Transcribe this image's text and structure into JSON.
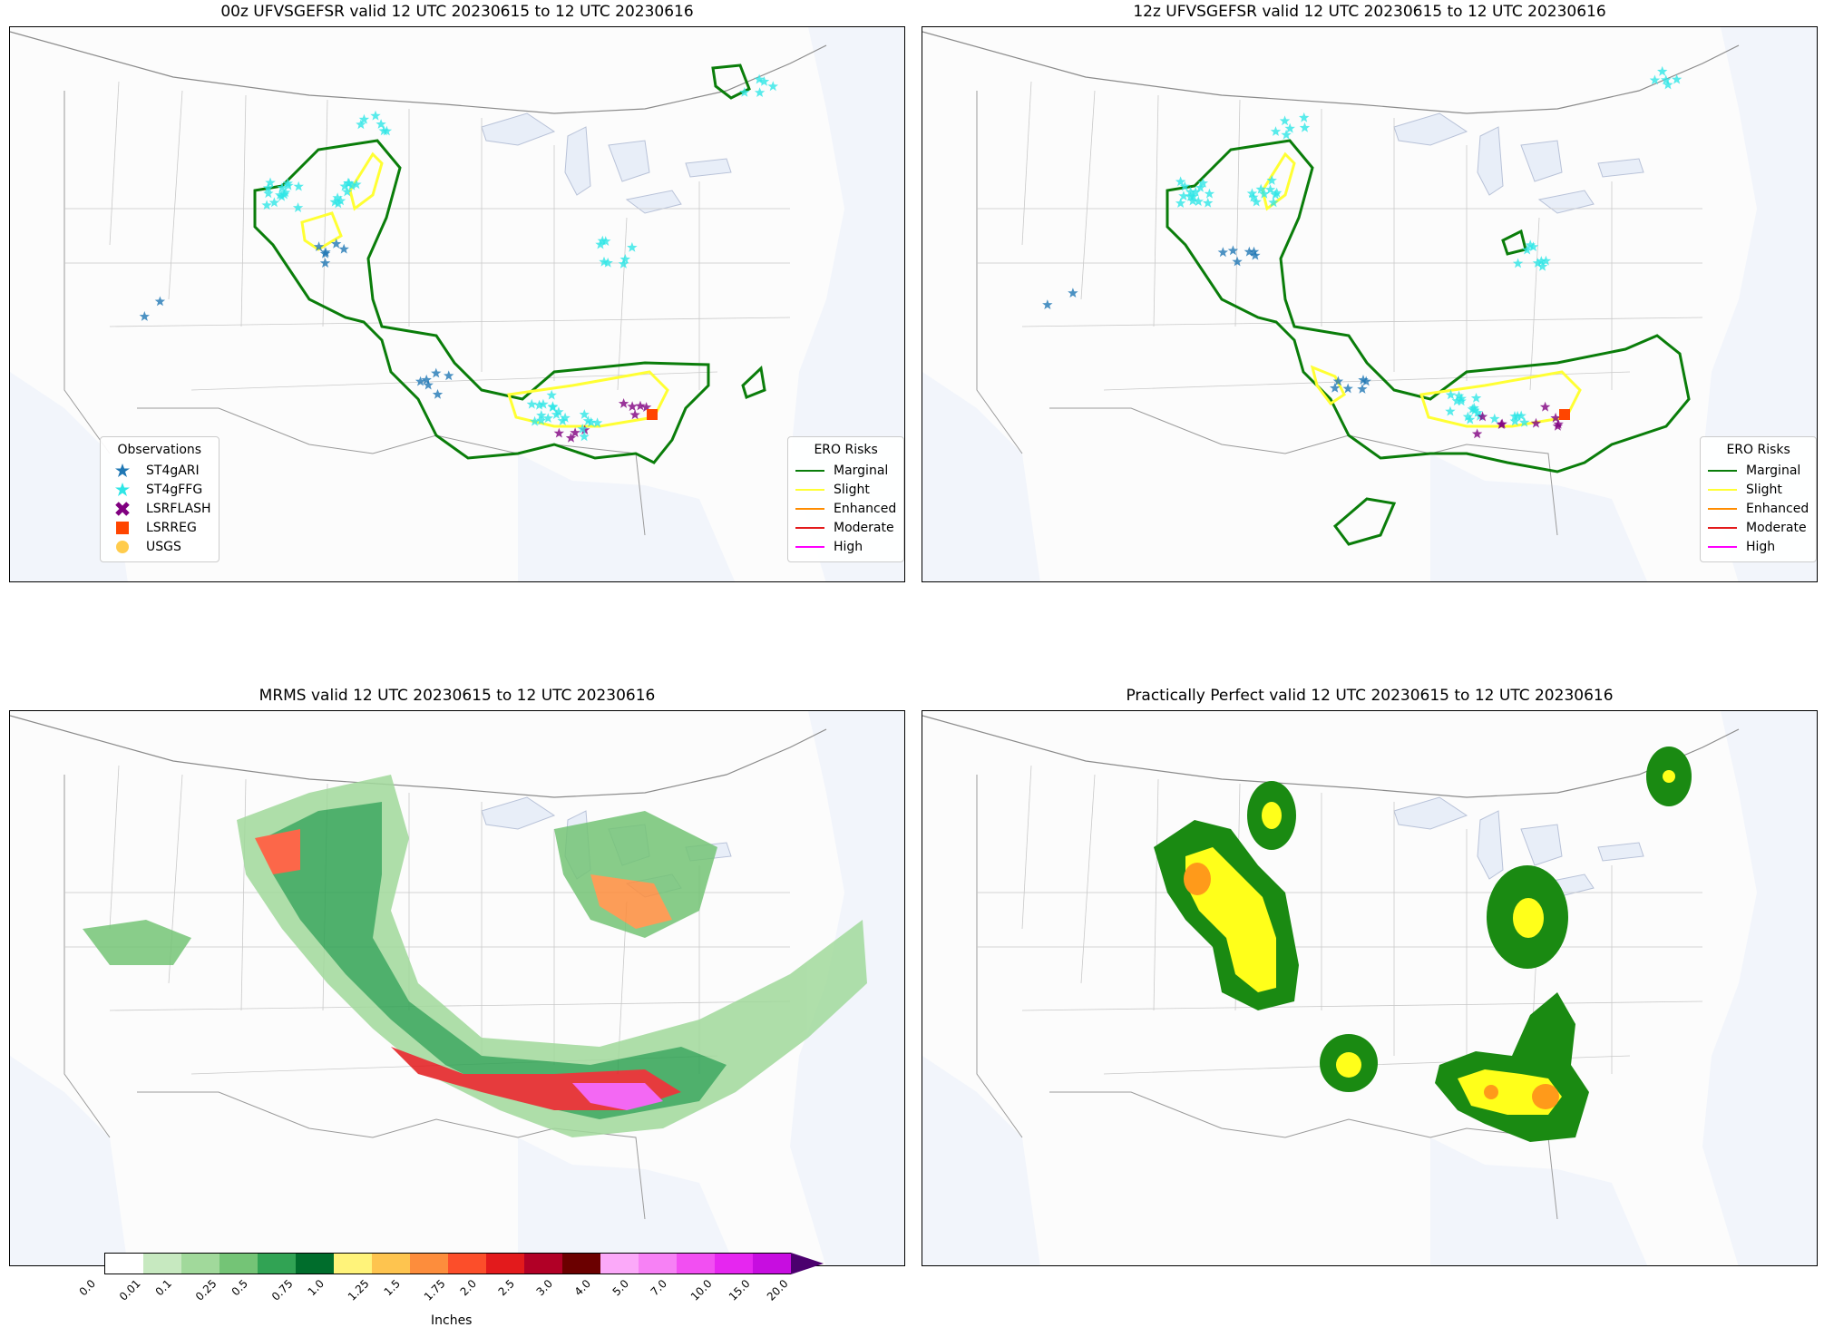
{
  "panels": {
    "tl": {
      "title": "00z UFVSGEFSR valid 12 UTC 20230615 to 12 UTC 20230616"
    },
    "tr": {
      "title": "12z UFVSGEFSR valid 12 UTC 20230615 to 12 UTC 20230616"
    },
    "bl": {
      "title": "MRMS valid 12 UTC 20230615 to 12 UTC 20230616"
    },
    "br": {
      "title": "Practically Perfect valid 12 UTC 20230615 to 12 UTC 20230616"
    }
  },
  "observations_legend": {
    "title": "Observations",
    "items": [
      {
        "label": "ST4gARI",
        "color": "#1f77b4",
        "icon": "star-icon"
      },
      {
        "label": "ST4gFFG",
        "color": "#2ee6e6",
        "icon": "star-icon"
      },
      {
        "label": "LSRFLASH",
        "color": "#800080",
        "icon": "x-icon"
      },
      {
        "label": "LSRREG",
        "color": "#ff4500",
        "icon": "square-icon"
      },
      {
        "label": "USGS",
        "color": "#ffcc4d",
        "icon": "circle-icon"
      }
    ]
  },
  "ero_legend": {
    "title": "ERO Risks",
    "items": [
      {
        "label": "Marginal",
        "color": "#0a7d0a"
      },
      {
        "label": "Slight",
        "color": "#ffff33"
      },
      {
        "label": "Enhanced",
        "color": "#ff8c00"
      },
      {
        "label": "Moderate",
        "color": "#e31a1c"
      },
      {
        "label": "High",
        "color": "#ff00ff"
      }
    ]
  },
  "colorbar": {
    "label": "Inches",
    "ticks": [
      "0.0",
      "0.01",
      "0.1",
      "0.25",
      "0.5",
      "0.75",
      "1.0",
      "1.25",
      "1.5",
      "1.75",
      "2.0",
      "2.5",
      "3.0",
      "4.0",
      "5.0",
      "7.0",
      "10.0",
      "15.0",
      "20.0"
    ],
    "colors": [
      "#ffffff",
      "#c7e9c0",
      "#a1d99b",
      "#74c476",
      "#31a354",
      "#006d2c",
      "#fff37a",
      "#fec44f",
      "#fd8d3c",
      "#fc4e2a",
      "#e31a1c",
      "#b10026",
      "#6b0000",
      "#fba9f9",
      "#f781f5",
      "#f24ff2",
      "#e626f0",
      "#c70de0",
      "#9200c8"
    ],
    "extend_color": "#4b006e"
  },
  "pp_colors": {
    "low": "#1a8a12",
    "mid": "#ffff1a",
    "high": "#ff9a1a"
  }
}
